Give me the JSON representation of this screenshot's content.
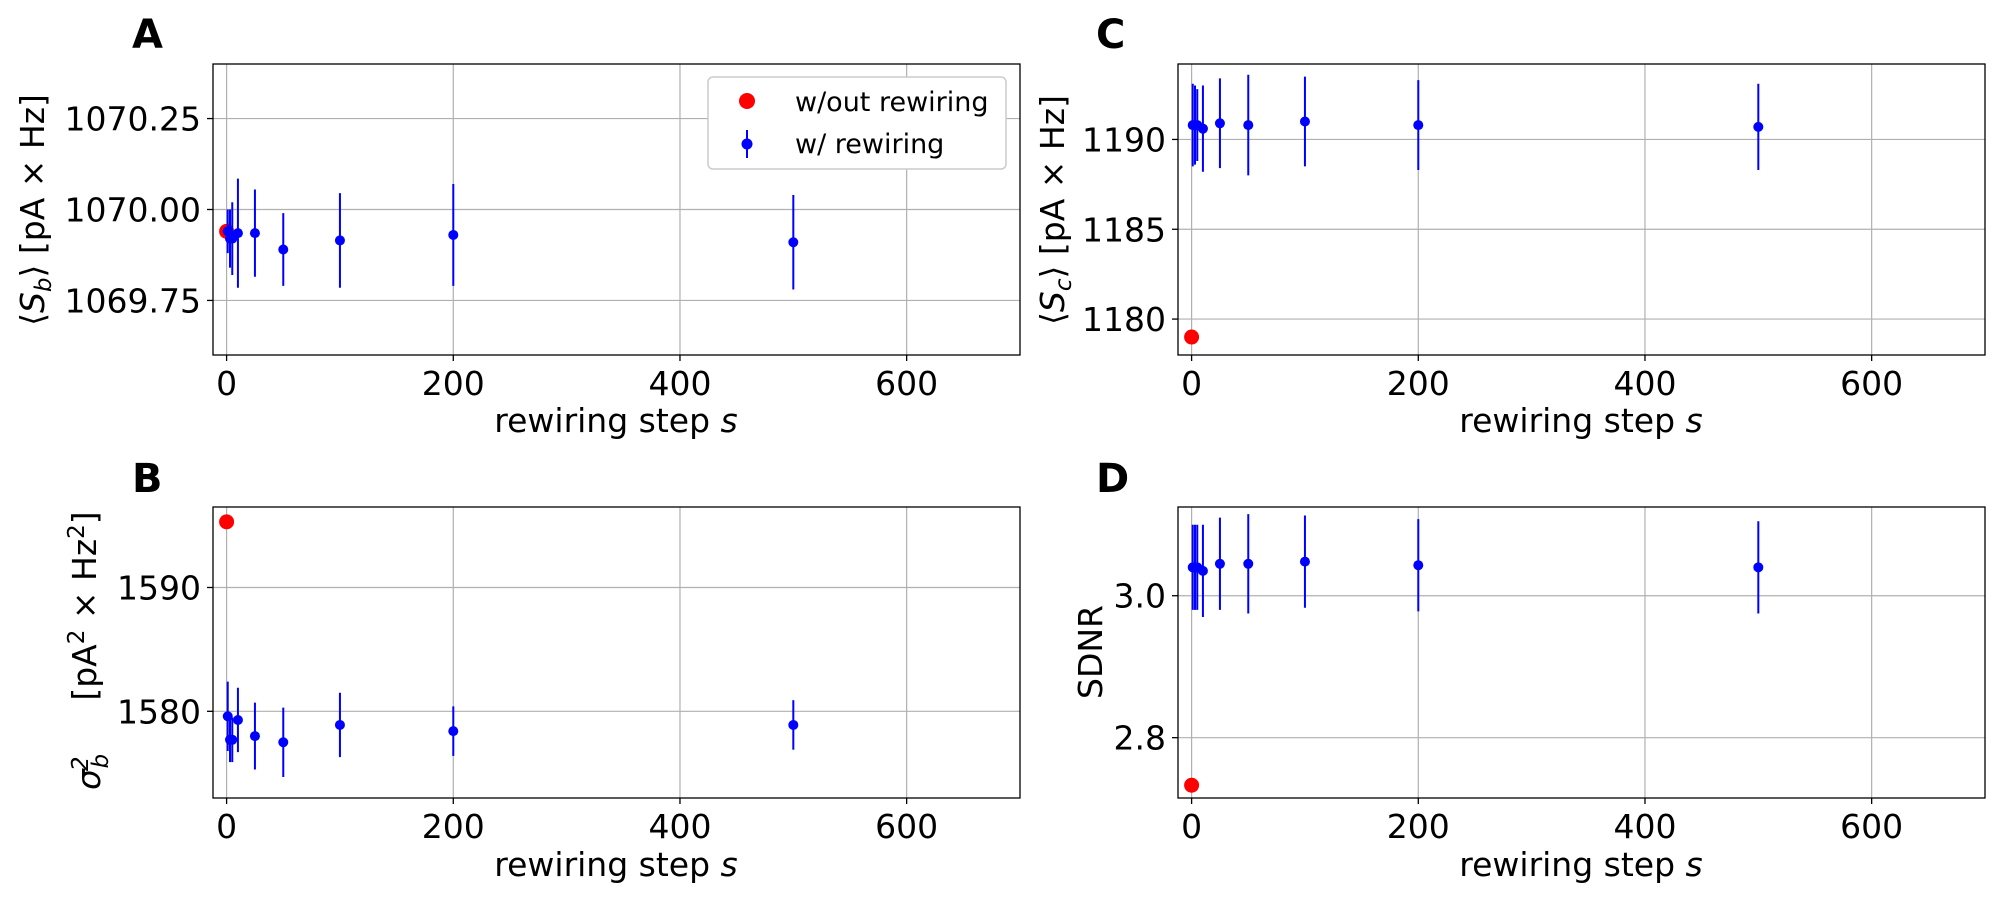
{
  "colors": {
    "without_rewiring": "#ff0000",
    "with_rewiring": "#0000ff"
  },
  "chart_data": [
    {
      "panel": "A",
      "type": "scatter",
      "xlabel": "rewiring step s",
      "ylabel": "⟨S_b⟩ [pA × Hz]",
      "xlim": [
        -12,
        700
      ],
      "ylim": [
        1069.6,
        1070.4
      ],
      "xticks": [
        0,
        200,
        400,
        600
      ],
      "yticks": [
        1069.75,
        1070.0,
        1070.25
      ],
      "ytick_labels": [
        "1069.75",
        "1070.00",
        "1070.25"
      ],
      "grid": true,
      "legend": {
        "position": "top-right",
        "entries": [
          "w/out rewiring",
          "w/ rewiring"
        ]
      },
      "series": [
        {
          "name": "w/out rewiring",
          "color": "#ff0000",
          "x": [
            0
          ],
          "y": [
            1069.94
          ],
          "err": [
            0
          ]
        },
        {
          "name": "w/ rewiring",
          "color": "#0000ff",
          "x": [
            1,
            3,
            5,
            10,
            25,
            50,
            100,
            200,
            500
          ],
          "y": [
            1069.94,
            1069.92,
            1069.92,
            1069.935,
            1069.935,
            1069.89,
            1069.915,
            1069.93,
            1069.91
          ],
          "err": [
            0.06,
            0.08,
            0.1,
            0.15,
            0.12,
            0.1,
            0.13,
            0.14,
            0.13
          ]
        }
      ]
    },
    {
      "panel": "B",
      "type": "scatter",
      "xlabel": "rewiring step s",
      "ylabel": "σ_b² [pA² × Hz²]",
      "xlim": [
        -12,
        700
      ],
      "ylim": [
        1573,
        1596.5
      ],
      "xticks": [
        0,
        200,
        400,
        600
      ],
      "yticks": [
        1580,
        1590
      ],
      "ytick_labels": [
        "1580",
        "1590"
      ],
      "grid": true,
      "series": [
        {
          "name": "w/out rewiring",
          "color": "#ff0000",
          "x": [
            0
          ],
          "y": [
            1595.3
          ],
          "err": [
            0
          ]
        },
        {
          "name": "w/ rewiring",
          "color": "#0000ff",
          "x": [
            1,
            3,
            5,
            10,
            25,
            50,
            100,
            200,
            500
          ],
          "y": [
            1579.6,
            1577.7,
            1577.7,
            1579.3,
            1578.0,
            1577.5,
            1578.9,
            1578.4,
            1578.9
          ],
          "err": [
            2.8,
            1.8,
            1.8,
            2.6,
            2.7,
            2.8,
            2.6,
            2.0,
            2.0
          ]
        }
      ]
    },
    {
      "panel": "C",
      "type": "scatter",
      "xlabel": "rewiring step s",
      "ylabel": "⟨S_c⟩ [pA × Hz]",
      "xlim": [
        -12,
        700
      ],
      "ylim": [
        1178,
        1194.2
      ],
      "xticks": [
        0,
        200,
        400,
        600
      ],
      "yticks": [
        1180,
        1185,
        1190
      ],
      "ytick_labels": [
        "1180",
        "1185",
        "1190"
      ],
      "grid": true,
      "series": [
        {
          "name": "w/out rewiring",
          "color": "#ff0000",
          "x": [
            0
          ],
          "y": [
            1179.0
          ],
          "err": [
            0
          ]
        },
        {
          "name": "w/ rewiring",
          "color": "#0000ff",
          "x": [
            1,
            3,
            5,
            10,
            25,
            50,
            100,
            200,
            500
          ],
          "y": [
            1190.8,
            1190.8,
            1190.8,
            1190.6,
            1190.9,
            1190.8,
            1191.0,
            1190.8,
            1190.7
          ],
          "err": [
            2.3,
            2.2,
            2.0,
            2.4,
            2.5,
            2.8,
            2.5,
            2.5,
            2.4
          ]
        }
      ]
    },
    {
      "panel": "D",
      "type": "scatter",
      "xlabel": "rewiring step s",
      "ylabel": "SDNR",
      "xlim": [
        -12,
        700
      ],
      "ylim": [
        2.715,
        3.125
      ],
      "xticks": [
        0,
        200,
        400,
        600
      ],
      "yticks": [
        2.8,
        3.0
      ],
      "ytick_labels": [
        "2.8",
        "3.0"
      ],
      "grid": true,
      "series": [
        {
          "name": "w/out rewiring",
          "color": "#ff0000",
          "x": [
            0
          ],
          "y": [
            2.733
          ],
          "err": [
            0
          ]
        },
        {
          "name": "w/ rewiring",
          "color": "#0000ff",
          "x": [
            1,
            3,
            5,
            10,
            25,
            50,
            100,
            200,
            500
          ],
          "y": [
            3.04,
            3.04,
            3.04,
            3.035,
            3.045,
            3.045,
            3.048,
            3.043,
            3.04
          ],
          "err": [
            0.06,
            0.06,
            0.06,
            0.065,
            0.065,
            0.07,
            0.065,
            0.065,
            0.065
          ]
        }
      ]
    }
  ]
}
